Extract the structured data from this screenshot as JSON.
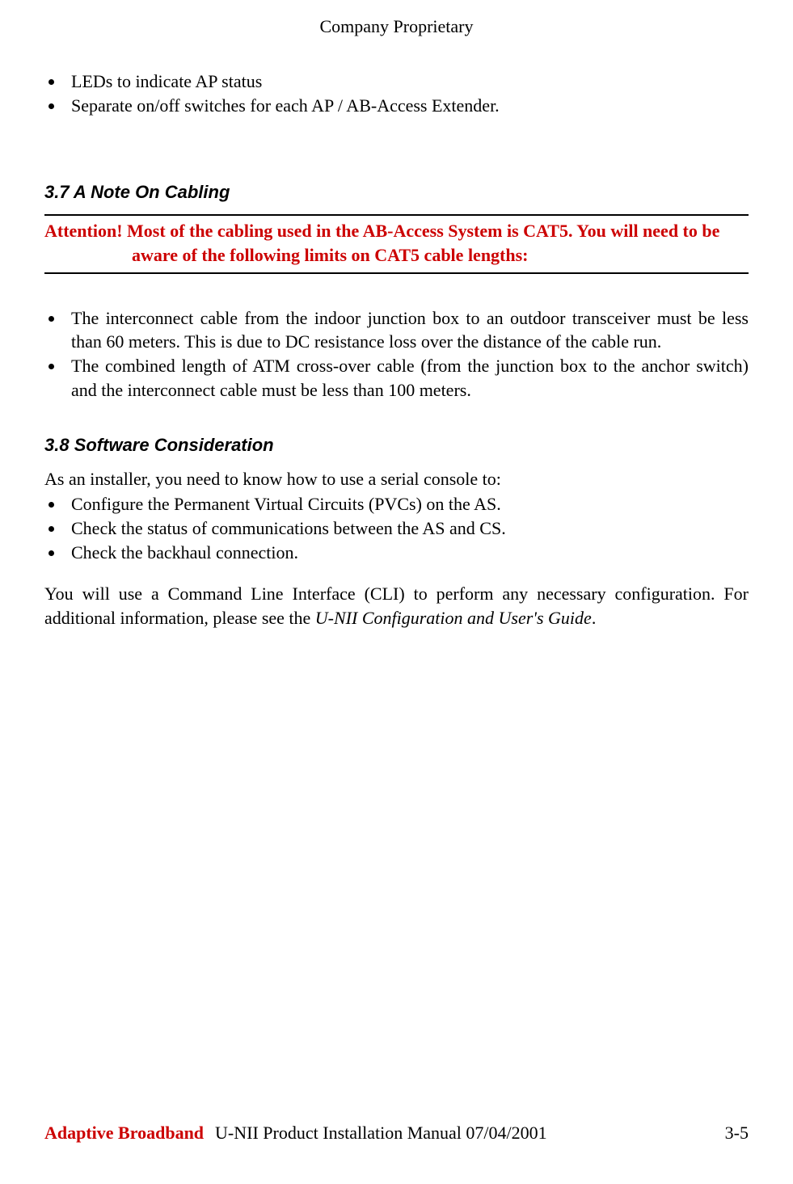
{
  "header": {
    "text": "Company Proprietary"
  },
  "topBullets": {
    "items": [
      "LEDs to indicate AP status",
      "Separate on/off switches for each AP / AB-Access Extender."
    ]
  },
  "section37": {
    "heading": "3.7    A Note On Cabling",
    "attention": {
      "label": "Attention!  ",
      "line1": "Most of the cabling used in the AB-Access System is CAT5.  You will need to be",
      "line2": "aware of the following limits on CAT5 cable lengths:",
      "color": "#cc0000"
    },
    "bullets": [
      "The interconnect cable from the indoor junction box to an outdoor transceiver must be less than 60 meters.  This is due to DC resistance loss over the distance of the cable run.",
      "The combined length of ATM cross-over cable (from the junction box to the anchor switch) and the interconnect cable must be less than 100 meters."
    ]
  },
  "section38": {
    "heading": "3.8    Software Consideration",
    "intro": "As an installer, you need to know how to use a serial console to:",
    "bullets": [
      "Configure the Permanent Virtual Circuits (PVCs) on the AS.",
      "Check the status of communications between the AS and CS.",
      "Check the backhaul connection."
    ],
    "cliPart1": "You will use a Command Line Interface (CLI) to perform any necessary configuration.  For additional information, please see the ",
    "cliItalic": "U-NII Configuration and User's Guide",
    "cliPart2": "."
  },
  "footer": {
    "brand": "Adaptive Broadband",
    "brandColor": "#cc0000",
    "title": "U-NII Product Installation Manual  07/04/2001",
    "page": "3-5"
  },
  "colors": {
    "text": "#000000",
    "background": "#ffffff",
    "accent": "#cc0000"
  }
}
